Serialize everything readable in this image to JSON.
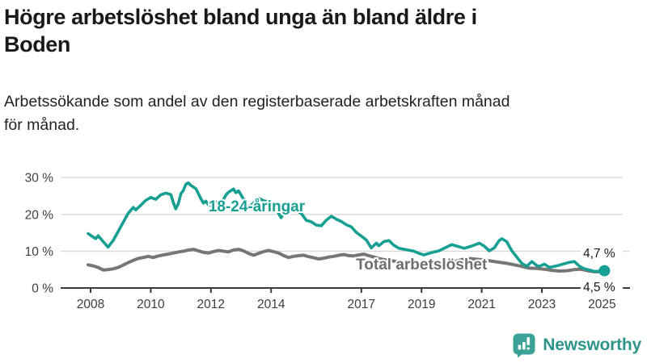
{
  "header": {
    "title_lines": [
      "Högre arbetslöshet bland unga än bland äldre i",
      "Boden"
    ],
    "subtitle_lines": [
      "Arbetssökande som andel av den registerbaserade arbetskraften månad",
      "för månad."
    ]
  },
  "logo": {
    "text": "Newsworthy",
    "icon": "bar-chart-speech-bubble",
    "icon_color": "#3aa296",
    "text_color": "#2e948b"
  },
  "chart_data": {
    "type": "line",
    "title": "Högre arbetslöshet bland unga än bland äldre i Boden",
    "subtitle": "Arbetssökande som andel av den registerbaserade arbetskraften månad för månad.",
    "xlabel": "",
    "ylabel": "",
    "ylim": [
      0,
      32
    ],
    "xlim": [
      2007.0,
      2025.6
    ],
    "grid": "horizontal",
    "x_ticks": [
      2008,
      2010,
      2012,
      2014,
      2017,
      2019,
      2021,
      2023,
      2025
    ],
    "y_ticks": [
      {
        "value": 30,
        "label": "30 %"
      },
      {
        "value": 20,
        "label": "20 %"
      },
      {
        "value": 10,
        "label": "10 %"
      },
      {
        "value": 0,
        "label": "0 %"
      }
    ],
    "colors": {
      "grid": "#d9d9d9",
      "axis": "#3a3a3a",
      "tick_label": "#3d3d3d",
      "end_label": "#1a1a1a"
    },
    "end_labels": [
      {
        "text": "4,7 %",
        "at_pct": 9.55
      },
      {
        "text": "4,5 %",
        "at_pct": 0.3
      }
    ],
    "series": [
      {
        "name": "Total arbetslöshet",
        "color": "#767676",
        "label_color": "#6e6e6e",
        "label_at": [
          2016.82,
          6.35
        ],
        "end_dot": false,
        "points": [
          [
            2007.92,
            6.3
          ],
          [
            2008.08,
            6.0
          ],
          [
            2008.25,
            5.6
          ],
          [
            2008.42,
            4.9
          ],
          [
            2008.58,
            5.0
          ],
          [
            2008.75,
            5.2
          ],
          [
            2008.92,
            5.6
          ],
          [
            2009.08,
            6.2
          ],
          [
            2009.25,
            6.9
          ],
          [
            2009.42,
            7.5
          ],
          [
            2009.58,
            8.0
          ],
          [
            2009.75,
            8.3
          ],
          [
            2009.92,
            8.6
          ],
          [
            2010.08,
            8.3
          ],
          [
            2010.25,
            8.7
          ],
          [
            2010.42,
            9.0
          ],
          [
            2010.58,
            9.2
          ],
          [
            2010.75,
            9.5
          ],
          [
            2010.92,
            9.8
          ],
          [
            2011.08,
            10.0
          ],
          [
            2011.25,
            10.3
          ],
          [
            2011.42,
            10.5
          ],
          [
            2011.58,
            10.1
          ],
          [
            2011.75,
            9.7
          ],
          [
            2011.92,
            9.5
          ],
          [
            2012.08,
            9.9
          ],
          [
            2012.25,
            10.2
          ],
          [
            2012.42,
            10.0
          ],
          [
            2012.58,
            9.8
          ],
          [
            2012.75,
            10.3
          ],
          [
            2012.92,
            10.5
          ],
          [
            2013.08,
            10.1
          ],
          [
            2013.25,
            9.4
          ],
          [
            2013.42,
            8.9
          ],
          [
            2013.58,
            9.4
          ],
          [
            2013.75,
            9.9
          ],
          [
            2013.92,
            10.2
          ],
          [
            2014.08,
            9.9
          ],
          [
            2014.25,
            9.5
          ],
          [
            2014.42,
            8.8
          ],
          [
            2014.58,
            8.3
          ],
          [
            2014.75,
            8.6
          ],
          [
            2014.92,
            8.8
          ],
          [
            2015.08,
            8.9
          ],
          [
            2015.25,
            8.5
          ],
          [
            2015.42,
            8.2
          ],
          [
            2015.58,
            7.9
          ],
          [
            2015.75,
            8.1
          ],
          [
            2015.92,
            8.4
          ],
          [
            2016.08,
            8.6
          ],
          [
            2016.25,
            8.9
          ],
          [
            2016.42,
            9.1
          ],
          [
            2016.58,
            8.8
          ],
          [
            2016.75,
            8.7
          ],
          [
            2016.92,
            9.0
          ],
          [
            2017.08,
            9.2
          ],
          [
            2017.25,
            8.8
          ],
          [
            2017.42,
            8.4
          ],
          [
            2017.58,
            8.0
          ],
          [
            2017.75,
            7.7
          ],
          [
            2017.92,
            7.5
          ],
          [
            2018.08,
            7.3
          ],
          [
            2018.33,
            7.0
          ],
          [
            2018.58,
            6.8
          ],
          [
            2018.83,
            6.6
          ],
          [
            2019.08,
            6.5
          ],
          [
            2019.33,
            6.4
          ],
          [
            2019.58,
            6.6
          ],
          [
            2019.83,
            6.8
          ],
          [
            2020.08,
            7.1
          ],
          [
            2020.33,
            7.7
          ],
          [
            2020.58,
            8.0
          ],
          [
            2020.83,
            7.8
          ],
          [
            2021.08,
            7.6
          ],
          [
            2021.33,
            7.3
          ],
          [
            2021.58,
            7.0
          ],
          [
            2021.83,
            6.7
          ],
          [
            2022.08,
            6.3
          ],
          [
            2022.25,
            6.0
          ],
          [
            2022.42,
            5.7
          ],
          [
            2022.58,
            5.4
          ],
          [
            2022.83,
            5.3
          ],
          [
            2023.08,
            5.1
          ],
          [
            2023.33,
            4.8
          ],
          [
            2023.58,
            4.6
          ],
          [
            2023.83,
            4.7
          ],
          [
            2024.08,
            5.0
          ],
          [
            2024.25,
            5.1
          ],
          [
            2024.42,
            4.9
          ],
          [
            2024.58,
            4.6
          ],
          [
            2024.75,
            4.4
          ],
          [
            2024.92,
            4.4
          ],
          [
            2025.08,
            4.5
          ]
        ]
      },
      {
        "name": "18-24-åringar",
        "color": "#169f92",
        "label_color": "#169f92",
        "label_at": [
          2011.92,
          22.1
        ],
        "end_dot": true,
        "points": [
          [
            2007.92,
            14.8
          ],
          [
            2008.0,
            14.3
          ],
          [
            2008.17,
            13.4
          ],
          [
            2008.25,
            14.2
          ],
          [
            2008.42,
            12.6
          ],
          [
            2008.58,
            11.1
          ],
          [
            2008.75,
            12.9
          ],
          [
            2008.92,
            15.4
          ],
          [
            2009.08,
            17.8
          ],
          [
            2009.25,
            20.3
          ],
          [
            2009.42,
            21.9
          ],
          [
            2009.5,
            21.2
          ],
          [
            2009.67,
            22.5
          ],
          [
            2009.83,
            23.8
          ],
          [
            2010.0,
            24.6
          ],
          [
            2010.17,
            24.1
          ],
          [
            2010.33,
            25.3
          ],
          [
            2010.5,
            25.8
          ],
          [
            2010.67,
            25.4
          ],
          [
            2010.75,
            23.2
          ],
          [
            2010.83,
            21.5
          ],
          [
            2010.92,
            23.0
          ],
          [
            2011.0,
            25.6
          ],
          [
            2011.08,
            26.5
          ],
          [
            2011.17,
            28.2
          ],
          [
            2011.25,
            28.6
          ],
          [
            2011.33,
            27.9
          ],
          [
            2011.5,
            27.0
          ],
          [
            2011.58,
            25.7
          ],
          [
            2011.67,
            24.2
          ],
          [
            2011.75,
            23.1
          ],
          [
            2011.83,
            23.6
          ],
          [
            2011.92,
            22.6
          ],
          [
            2012.0,
            22.4
          ],
          [
            2012.17,
            23.4
          ],
          [
            2012.33,
            22.8
          ],
          [
            2012.5,
            25.3
          ],
          [
            2012.58,
            26.0
          ],
          [
            2012.75,
            26.9
          ],
          [
            2012.83,
            25.9
          ],
          [
            2012.92,
            26.4
          ],
          [
            2013.08,
            24.2
          ],
          [
            2013.25,
            21.9
          ],
          [
            2013.42,
            23.1
          ],
          [
            2013.58,
            24.4
          ],
          [
            2013.75,
            23.7
          ],
          [
            2013.92,
            23.4
          ],
          [
            2014.08,
            22.6
          ],
          [
            2014.25,
            20.3
          ],
          [
            2014.33,
            19.1
          ],
          [
            2014.5,
            21.4
          ],
          [
            2014.67,
            22.2
          ],
          [
            2014.83,
            21.1
          ],
          [
            2015.0,
            20.3
          ],
          [
            2015.17,
            18.4
          ],
          [
            2015.33,
            18.0
          ],
          [
            2015.5,
            17.1
          ],
          [
            2015.67,
            16.9
          ],
          [
            2015.83,
            18.4
          ],
          [
            2016.0,
            19.5
          ],
          [
            2016.17,
            18.7
          ],
          [
            2016.33,
            18.1
          ],
          [
            2016.5,
            17.2
          ],
          [
            2016.67,
            16.6
          ],
          [
            2016.83,
            15.1
          ],
          [
            2017.0,
            14.1
          ],
          [
            2017.17,
            13.0
          ],
          [
            2017.33,
            10.9
          ],
          [
            2017.5,
            12.2
          ],
          [
            2017.58,
            11.5
          ],
          [
            2017.75,
            12.6
          ],
          [
            2017.92,
            12.9
          ],
          [
            2018.08,
            11.6
          ],
          [
            2018.25,
            10.8
          ],
          [
            2018.5,
            10.4
          ],
          [
            2018.75,
            10.0
          ],
          [
            2018.92,
            9.4
          ],
          [
            2019.08,
            9.0
          ],
          [
            2019.33,
            9.6
          ],
          [
            2019.58,
            10.1
          ],
          [
            2019.83,
            11.1
          ],
          [
            2020.0,
            11.8
          ],
          [
            2020.17,
            11.4
          ],
          [
            2020.42,
            10.8
          ],
          [
            2020.67,
            11.4
          ],
          [
            2020.92,
            12.2
          ],
          [
            2021.08,
            11.4
          ],
          [
            2021.25,
            10.1
          ],
          [
            2021.42,
            10.9
          ],
          [
            2021.58,
            12.9
          ],
          [
            2021.67,
            13.4
          ],
          [
            2021.83,
            12.6
          ],
          [
            2022.0,
            10.1
          ],
          [
            2022.17,
            8.4
          ],
          [
            2022.33,
            6.7
          ],
          [
            2022.5,
            5.9
          ],
          [
            2022.67,
            7.2
          ],
          [
            2022.83,
            6.1
          ],
          [
            2022.92,
            5.9
          ],
          [
            2023.08,
            6.5
          ],
          [
            2023.25,
            5.6
          ],
          [
            2023.42,
            5.9
          ],
          [
            2023.58,
            6.2
          ],
          [
            2023.75,
            6.6
          ],
          [
            2023.92,
            7.0
          ],
          [
            2024.08,
            7.2
          ],
          [
            2024.25,
            5.9
          ],
          [
            2024.42,
            5.2
          ],
          [
            2024.58,
            4.9
          ],
          [
            2024.75,
            4.5
          ],
          [
            2024.92,
            4.6
          ],
          [
            2025.08,
            4.7
          ]
        ]
      }
    ]
  }
}
